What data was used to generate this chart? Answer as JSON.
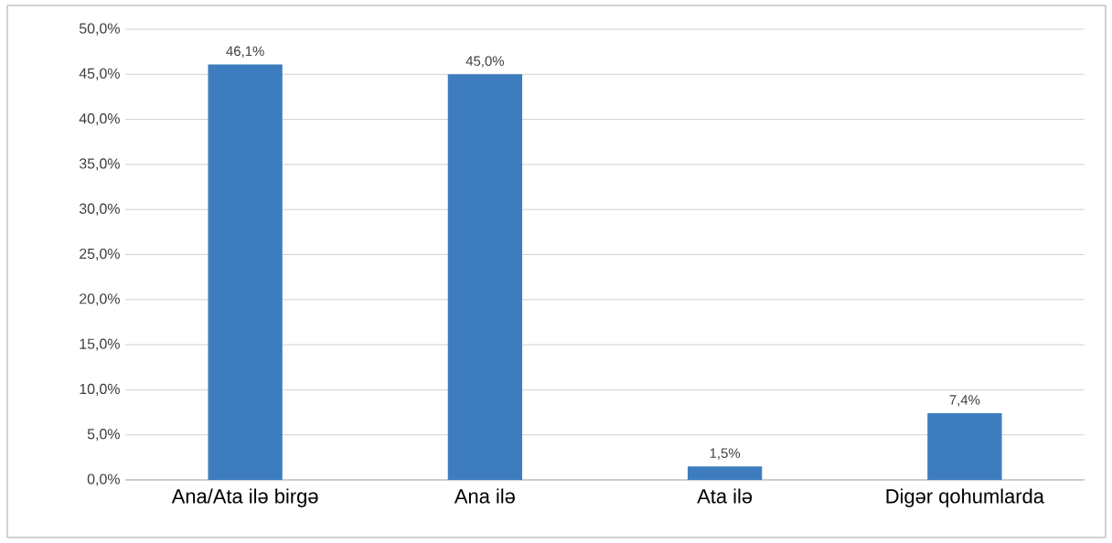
{
  "chart_data": {
    "type": "bar",
    "categories": [
      "Ana/Ata ilə birgə",
      "Ana ilə",
      "Ata ilə",
      "Digər qohumlarda"
    ],
    "values": [
      46.1,
      45.0,
      1.5,
      7.4
    ],
    "value_labels": [
      "46,1%",
      "45,0%",
      "1,5%",
      "7,4%"
    ],
    "color": "#3d7dbf",
    "ylim": [
      0,
      50
    ],
    "yticks": [
      {
        "value": 0,
        "label": "0,0%"
      },
      {
        "value": 5,
        "label": "5,0%"
      },
      {
        "value": 10,
        "label": "10,0%"
      },
      {
        "value": 15,
        "label": "15,0%"
      },
      {
        "value": 20,
        "label": "20,0%"
      },
      {
        "value": 25,
        "label": "25,0%"
      },
      {
        "value": 30,
        "label": "30,0%"
      },
      {
        "value": 35,
        "label": "35,0%"
      },
      {
        "value": 40,
        "label": "40,0%"
      },
      {
        "value": 45,
        "label": "45,0%"
      },
      {
        "value": 50,
        "label": "50,0%"
      }
    ],
    "grid": "y"
  }
}
